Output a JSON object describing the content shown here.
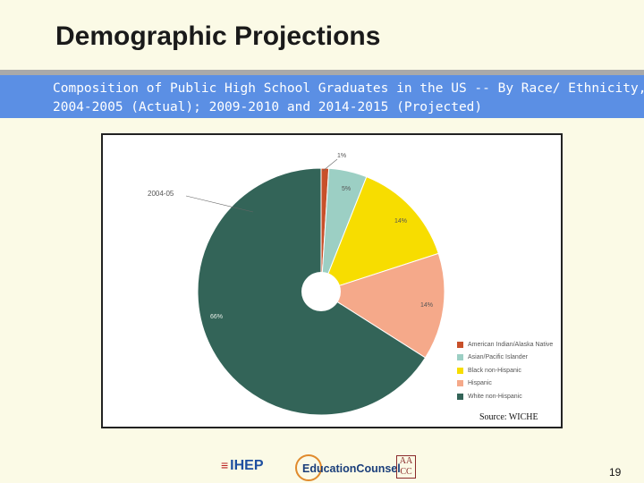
{
  "slide": {
    "title": "Demographic Projections",
    "banner_line1": "Composition of Public High School Graduates in the US -- By Race/ Ethnicity,",
    "banner_line2": "2004-2005 (Actual); 2009-2010 and 2014-2015 (Projected)",
    "source": "Source: WICHE",
    "page_number": "19"
  },
  "footer": {
    "logo_ihep": "IHEP",
    "logo_educationcounsel": "EducationCounsel",
    "logo_aacc_mark": "AA CC"
  },
  "colors": {
    "background": "#fbfae6",
    "banner": "#5b8fe4",
    "american_indian": "#c8502a",
    "asian": "#9ccfc4",
    "black": "#f7dd00",
    "hispanic": "#f5a98a",
    "white": "#336458"
  },
  "chart_data": {
    "type": "pie",
    "variant": "donut",
    "ring_label": "2004-05",
    "series": [
      {
        "name": "American Indian/Alaska Native",
        "value": 1,
        "label": "1%",
        "color": "#c8502a"
      },
      {
        "name": "Asian/Pacific Islander",
        "value": 5,
        "label": "5%",
        "color": "#9ccfc4"
      },
      {
        "name": "Black non-Hispanic",
        "value": 14,
        "label": "14%",
        "color": "#f7dd00"
      },
      {
        "name": "Hispanic",
        "value": 14,
        "label": "14%",
        "color": "#f5a98a"
      },
      {
        "name": "White non-Hispanic",
        "value": 66,
        "label": "66%",
        "color": "#336458"
      }
    ],
    "legend_position": "bottom-right"
  }
}
